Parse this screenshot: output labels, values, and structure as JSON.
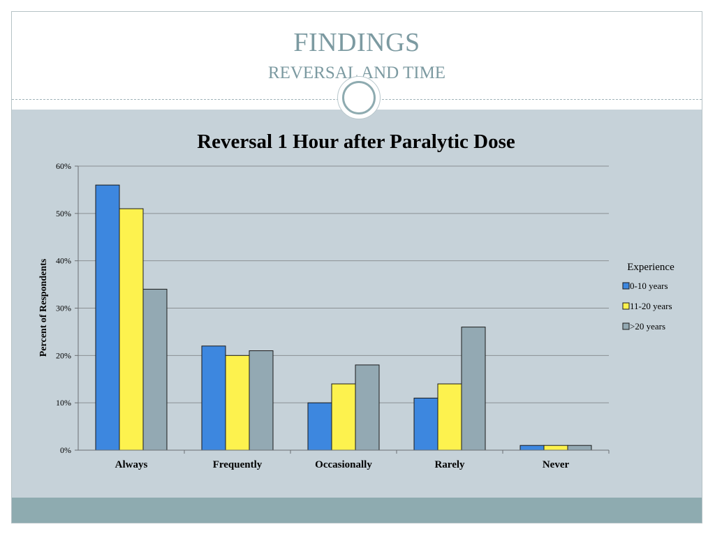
{
  "slide": {
    "title": "FINDINGS",
    "subtitle": "REVERSAL AND TIME"
  },
  "colors": {
    "title": "#7c9aa1",
    "panel": "#c6d2d9",
    "footer": "#8eabb0",
    "gridline": "#8a8f93"
  },
  "chart_data": {
    "type": "bar",
    "title": "Reversal 1 Hour after Paralytic Dose",
    "xlabel": "",
    "ylabel": "Percent of Respondents",
    "ylim": [
      0,
      60
    ],
    "yticks": [
      "0%",
      "10%",
      "20%",
      "30%",
      "40%",
      "50%",
      "60%"
    ],
    "categories": [
      "Always",
      "Frequently",
      "Occasionally",
      "Rarely",
      "Never"
    ],
    "legend": {
      "title": "Experience",
      "position": "right"
    },
    "grid": true,
    "series": [
      {
        "name": "0-10 years",
        "color": "#3d87df",
        "values": [
          56,
          22,
          10,
          11,
          1
        ]
      },
      {
        "name": "11-20 years",
        "color": "#fdf24e",
        "values": [
          51,
          20,
          14,
          14,
          1
        ]
      },
      {
        "name": ">20 years",
        "color": "#93a9b3",
        "values": [
          34,
          21,
          18,
          26,
          1
        ]
      }
    ]
  }
}
